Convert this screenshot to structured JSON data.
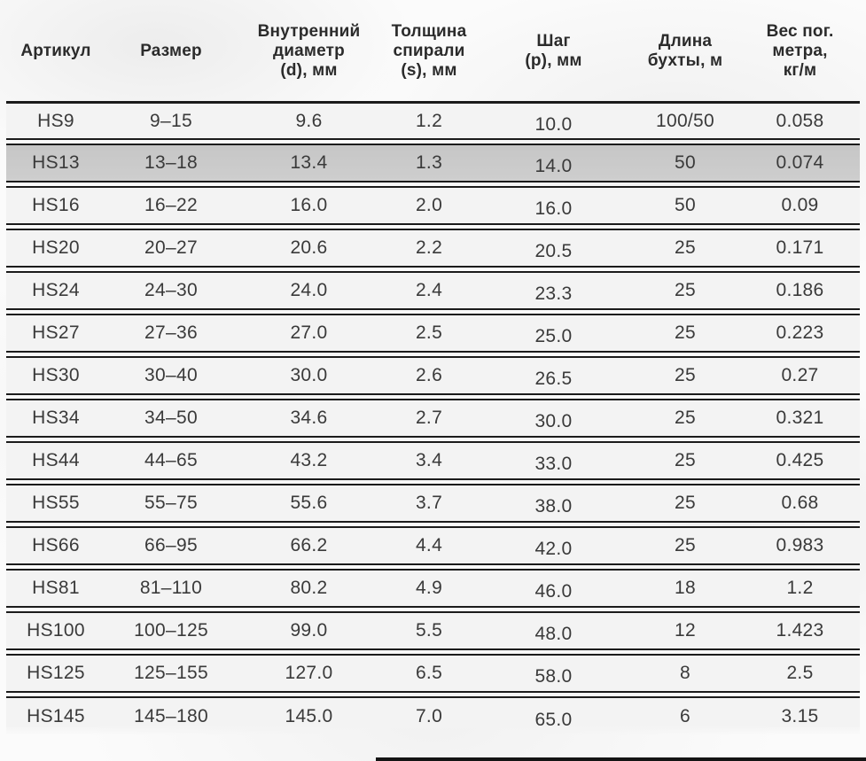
{
  "colors": {
    "page_bg": "#fbfbfb",
    "row_bg": "#f3f3f3",
    "highlight_row_bg": "#cecece",
    "line": "#1b1b1b",
    "header_text": "#2b2b2b",
    "cell_text": "#3a3a3a"
  },
  "table": {
    "columns": [
      {
        "key": "article",
        "label": "Артикул",
        "label_lines": [
          "Артикул"
        ]
      },
      {
        "key": "size",
        "label": "Размер",
        "label_lines": [
          "Размер"
        ]
      },
      {
        "key": "inner_diameter",
        "label": "Внутренний диаметр (d), мм",
        "label_lines": [
          "Внутренний",
          "диаметр",
          "(d), мм"
        ]
      },
      {
        "key": "spiral_thickness",
        "label": "Толщина спирали (s), мм",
        "label_lines": [
          "Толщина",
          "спирали",
          "(s), мм"
        ]
      },
      {
        "key": "pitch",
        "label": "Шаг (p), мм",
        "label_lines": [
          "Шаг",
          "(p), мм"
        ]
      },
      {
        "key": "coil_length",
        "label": "Длина бухты, м",
        "label_lines": [
          "Длина",
          "бухты, м"
        ]
      },
      {
        "key": "weight",
        "label": "Вес пог. метра, кг/м",
        "label_lines": [
          "Вес пог.",
          "метра,",
          "кг/м"
        ]
      }
    ],
    "highlighted_article": "HS13",
    "rows": [
      [
        "HS9",
        "9–15",
        "9.6",
        "1.2",
        "10.0",
        "100/50",
        "0.058"
      ],
      [
        "HS13",
        "13–18",
        "13.4",
        "1.3",
        "14.0",
        "50",
        "0.074"
      ],
      [
        "HS16",
        "16–22",
        "16.0",
        "2.0",
        "16.0",
        "50",
        "0.09"
      ],
      [
        "HS20",
        "20–27",
        "20.6",
        "2.2",
        "20.5",
        "25",
        "0.171"
      ],
      [
        "HS24",
        "24–30",
        "24.0",
        "2.4",
        "23.3",
        "25",
        "0.186"
      ],
      [
        "HS27",
        "27–36",
        "27.0",
        "2.5",
        "25.0",
        "25",
        "0.223"
      ],
      [
        "HS30",
        "30–40",
        "30.0",
        "2.6",
        "26.5",
        "25",
        "0.27"
      ],
      [
        "HS34",
        "34–50",
        "34.6",
        "2.7",
        "30.0",
        "25",
        "0.321"
      ],
      [
        "HS44",
        "44–65",
        "43.2",
        "3.4",
        "33.0",
        "25",
        "0.425"
      ],
      [
        "HS55",
        "55–75",
        "55.6",
        "3.7",
        "38.0",
        "25",
        "0.68"
      ],
      [
        "HS66",
        "66–95",
        "66.2",
        "4.4",
        "42.0",
        "25",
        "0.983"
      ],
      [
        "HS81",
        "81–110",
        "80.2",
        "4.9",
        "46.0",
        "18",
        "1.2"
      ],
      [
        "HS100",
        "100–125",
        "99.0",
        "5.5",
        "48.0",
        "12",
        "1.423"
      ],
      [
        "HS125",
        "125–155",
        "127.0",
        "6.5",
        "58.0",
        "8",
        "2.5"
      ],
      [
        "HS145",
        "145–180",
        "145.0",
        "7.0",
        "65.0",
        "6",
        "3.15"
      ]
    ]
  }
}
